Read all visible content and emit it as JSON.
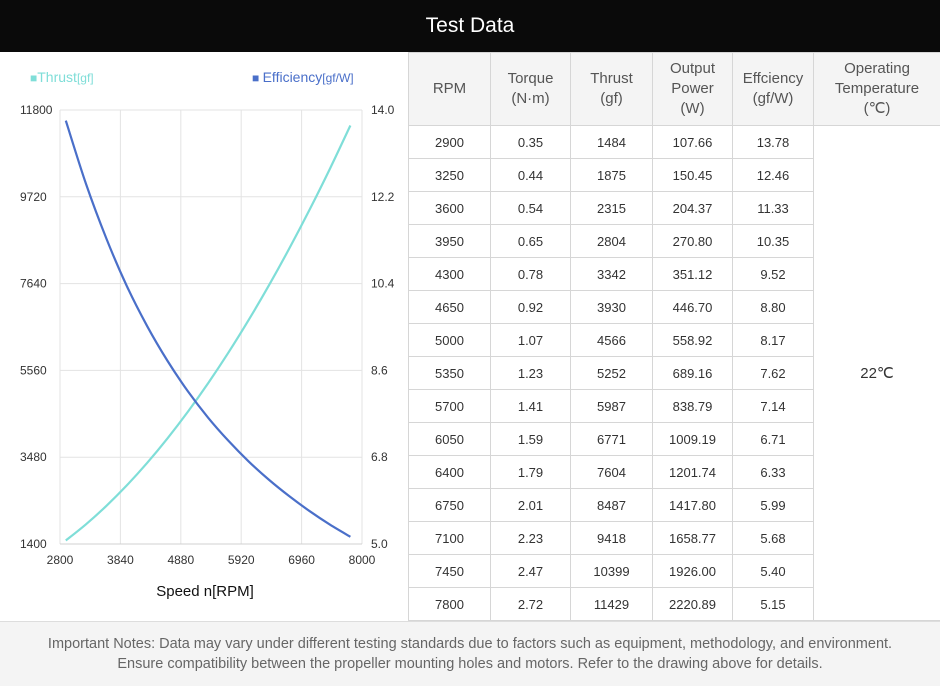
{
  "header": {
    "title": "Test Data"
  },
  "colors": {
    "thrust": "#7fded8",
    "efficiency": "#4a6fc9",
    "grid": "#e3e3e3",
    "header_bg": "#0a0a0a"
  },
  "chart_data": {
    "type": "line",
    "legend": [
      {
        "marker": "■",
        "name": "Thrust",
        "unit": "[gf]"
      },
      {
        "marker": "■",
        "name": "Efficiency",
        "unit": "[gf/W]"
      }
    ],
    "legend_position": "top",
    "xlabel": "Speed n[RPM]",
    "x_ticks": [
      "2800",
      "3840",
      "4880",
      "5920",
      "6960",
      "8000"
    ],
    "xlim": [
      2800,
      8000
    ],
    "y_left_ticks": [
      "11800",
      "9720",
      "7640",
      "5560",
      "3480",
      "1400"
    ],
    "y_left_lim": [
      1400,
      11800
    ],
    "y_right_ticks": [
      "14.0",
      "12.2",
      "10.4",
      "8.6",
      "6.8",
      "5.0"
    ],
    "y_right_lim": [
      5.0,
      14.0
    ],
    "grid": true,
    "x": [
      2900,
      3250,
      3600,
      3950,
      4300,
      4650,
      5000,
      5350,
      5700,
      6050,
      6400,
      6750,
      7100,
      7450,
      7800
    ],
    "series": [
      {
        "name": "Thrust",
        "axis": "left",
        "values": [
          1484,
          1875,
          2315,
          2804,
          3342,
          3930,
          4566,
          5252,
          5987,
          6771,
          7604,
          8487,
          9418,
          10399,
          11429
        ]
      },
      {
        "name": "Efficiency",
        "axis": "right",
        "values": [
          13.78,
          12.46,
          11.33,
          10.35,
          9.52,
          8.8,
          8.17,
          7.62,
          7.14,
          6.71,
          6.33,
          5.99,
          5.68,
          5.4,
          5.15
        ]
      }
    ]
  },
  "table": {
    "columns": [
      [
        "RPM"
      ],
      [
        "Torque",
        "(N·m)"
      ],
      [
        "Thrust",
        "(gf)"
      ],
      [
        "Output",
        "Power",
        "(W)"
      ],
      [
        "Effciency",
        "(gf/W)"
      ],
      [
        "Operating",
        "Temperature",
        "(℃)"
      ]
    ],
    "rows": [
      [
        "2900",
        "0.35",
        "1484",
        "107.66",
        "13.78"
      ],
      [
        "3250",
        "0.44",
        "1875",
        "150.45",
        "12.46"
      ],
      [
        "3600",
        "0.54",
        "2315",
        "204.37",
        "11.33"
      ],
      [
        "3950",
        "0.65",
        "2804",
        "270.80",
        "10.35"
      ],
      [
        "4300",
        "0.78",
        "3342",
        "351.12",
        "9.52"
      ],
      [
        "4650",
        "0.92",
        "3930",
        "446.70",
        "8.80"
      ],
      [
        "5000",
        "1.07",
        "4566",
        "558.92",
        "8.17"
      ],
      [
        "5350",
        "1.23",
        "5252",
        "689.16",
        "7.62"
      ],
      [
        "5700",
        "1.41",
        "5987",
        "838.79",
        "7.14"
      ],
      [
        "6050",
        "1.59",
        "6771",
        "1009.19",
        "6.71"
      ],
      [
        "6400",
        "1.79",
        "7604",
        "1201.74",
        "6.33"
      ],
      [
        "6750",
        "2.01",
        "8487",
        "1417.80",
        "5.99"
      ],
      [
        "7100",
        "2.23",
        "9418",
        "1658.77",
        "5.68"
      ],
      [
        "7450",
        "2.47",
        "10399",
        "1926.00",
        "5.40"
      ],
      [
        "7800",
        "2.72",
        "11429",
        "2220.89",
        "5.15"
      ]
    ],
    "temperature": "22℃"
  },
  "notes": [
    "Important Notes: Data may vary under different testing standards due to factors such as equipment, methodology, and environment.",
    "Ensure compatibility between the propeller mounting holes and motors. Refer to the drawing above for details."
  ]
}
